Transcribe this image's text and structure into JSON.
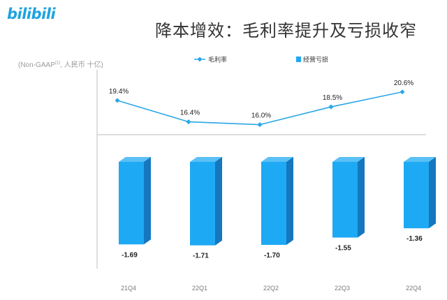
{
  "logo": {
    "text": "bilibili"
  },
  "title": "降本增效：毛利率提升及亏损收窄",
  "unit_label": {
    "main": "(Non-GAAP",
    "sup": "(1)",
    "rest": ", 人民币 十亿)"
  },
  "colors": {
    "line": "#2aa7e8",
    "bar_front": "#1ea9f4",
    "bar_side": "#1477c0",
    "bar_top": "#5ac0f5",
    "axis": "#bdbdbd"
  },
  "chart_data": {
    "type": "bar",
    "categories": [
      "21Q4",
      "22Q1",
      "22Q2",
      "22Q3",
      "22Q4"
    ],
    "series": [
      {
        "name": "毛利率",
        "type": "line",
        "values": [
          19.4,
          16.4,
          16.0,
          18.5,
          20.6
        ],
        "labels": [
          "19.4%",
          "16.4%",
          "16.0%",
          "18.5%",
          "20.6%"
        ]
      },
      {
        "name": "经营亏损",
        "type": "bar",
        "values": [
          -1.69,
          -1.71,
          -1.7,
          -1.55,
          -1.36
        ],
        "labels": [
          "-1.69",
          "-1.71",
          "-1.70",
          "-1.55",
          "-1.36"
        ]
      }
    ],
    "legend_position": "top-center",
    "grid": false
  }
}
